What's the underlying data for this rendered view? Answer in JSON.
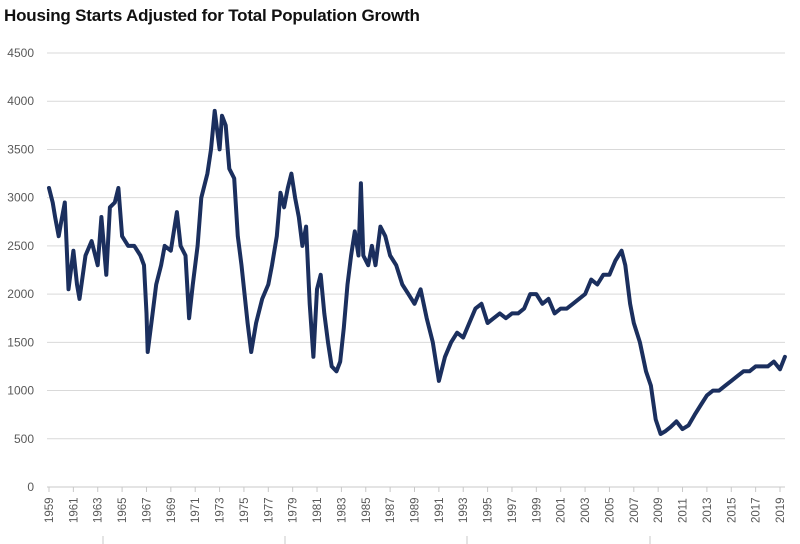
{
  "chart_data": {
    "type": "line",
    "title": "Housing Starts Adjusted for Total Population Growth",
    "xlabel": "",
    "ylabel": "",
    "ylim": [
      0,
      4500
    ],
    "xlim": [
      1959,
      2019.5
    ],
    "yticks": [
      0,
      500,
      1000,
      1500,
      2000,
      2500,
      3000,
      3500,
      4000,
      4500
    ],
    "xticks": [
      "1959",
      "1961",
      "1963",
      "1965",
      "1967",
      "1969",
      "1971",
      "1973",
      "1975",
      "1977",
      "1979",
      "1981",
      "1983",
      "1985",
      "1987",
      "1989",
      "1991",
      "1993",
      "1995",
      "1997",
      "1999",
      "2001",
      "2003",
      "2005",
      "2007",
      "2009",
      "2011",
      "2013",
      "2015",
      "2017",
      "2019"
    ],
    "grid": true,
    "legend": "none",
    "line_color": "#1b2f5e",
    "series": [
      {
        "name": "Housing Starts Adjusted for Total Population Growth",
        "x": [
          1959.0,
          1959.3,
          1959.5,
          1959.8,
          1960.0,
          1960.3,
          1960.6,
          1961.0,
          1961.3,
          1961.5,
          1962.0,
          1962.5,
          1963.0,
          1963.3,
          1963.7,
          1964.0,
          1964.4,
          1964.7,
          1965.0,
          1965.5,
          1966.0,
          1966.5,
          1966.8,
          1967.0,
          1967.1,
          1967.5,
          1967.8,
          1968.2,
          1968.5,
          1969.0,
          1969.5,
          1969.8,
          1970.2,
          1970.5,
          1970.8,
          1971.2,
          1971.5,
          1972.0,
          1972.3,
          1972.6,
          1973.0,
          1973.2,
          1973.5,
          1973.8,
          1974.2,
          1974.5,
          1974.8,
          1975.3,
          1975.6,
          1976.0,
          1976.5,
          1977.0,
          1977.3,
          1977.7,
          1978.0,
          1978.3,
          1978.6,
          1978.9,
          1979.2,
          1979.5,
          1979.8,
          1980.1,
          1980.4,
          1980.7,
          1981.0,
          1981.3,
          1981.6,
          1981.9,
          1982.2,
          1982.6,
          1982.9,
          1983.2,
          1983.5,
          1983.8,
          1984.1,
          1984.4,
          1984.6,
          1984.8,
          1985.2,
          1985.5,
          1985.8,
          1986.2,
          1986.6,
          1987.0,
          1987.5,
          1988.0,
          1988.5,
          1989.0,
          1989.5,
          1990.0,
          1990.5,
          1991.0,
          1991.5,
          1992.0,
          1992.5,
          1993.0,
          1993.5,
          1994.0,
          1994.5,
          1995.0,
          1995.5,
          1996.0,
          1996.5,
          1997.0,
          1997.5,
          1998.0,
          1998.5,
          1999.0,
          1999.5,
          2000.0,
          2000.5,
          2001.0,
          2001.5,
          2002.0,
          2002.5,
          2003.0,
          2003.5,
          2004.0,
          2004.5,
          2005.0,
          2005.5,
          2006.0,
          2006.3,
          2006.7,
          2007.0,
          2007.5,
          2008.0,
          2008.4,
          2008.8,
          2009.2,
          2009.6,
          2010.0,
          2010.5,
          2011.0,
          2011.5,
          2012.0,
          2012.5,
          2013.0,
          2013.5,
          2014.0,
          2014.5,
          2015.0,
          2015.5,
          2016.0,
          2016.5,
          2017.0,
          2017.5,
          2018.0,
          2018.5,
          2019.0,
          2019.4
        ],
        "values": [
          3100,
          2950,
          2800,
          2600,
          2750,
          2950,
          2050,
          2450,
          2100,
          1950,
          2400,
          2550,
          2300,
          2800,
          2200,
          2900,
          2950,
          3100,
          2600,
          2500,
          2500,
          2400,
          2300,
          1800,
          1400,
          1800,
          2100,
          2300,
          2500,
          2450,
          2850,
          2500,
          2400,
          1750,
          2100,
          2500,
          3000,
          3250,
          3500,
          3900,
          3500,
          3850,
          3750,
          3300,
          3200,
          2600,
          2300,
          1700,
          1400,
          1700,
          1950,
          2100,
          2300,
          2600,
          3050,
          2900,
          3100,
          3250,
          3000,
          2800,
          2500,
          2700,
          1900,
          1350,
          2050,
          2200,
          1800,
          1500,
          1250,
          1200,
          1300,
          1650,
          2100,
          2400,
          2650,
          2400,
          3150,
          2400,
          2300,
          2500,
          2300,
          2700,
          2600,
          2400,
          2300,
          2100,
          2000,
          1900,
          2050,
          1750,
          1500,
          1100,
          1350,
          1500,
          1600,
          1550,
          1700,
          1850,
          1900,
          1700,
          1750,
          1800,
          1750,
          1800,
          1800,
          1850,
          2000,
          2000,
          1900,
          1950,
          1800,
          1850,
          1850,
          1900,
          1950,
          2000,
          2150,
          2100,
          2200,
          2200,
          2350,
          2450,
          2300,
          1900,
          1700,
          1500,
          1200,
          1050,
          700,
          550,
          580,
          620,
          680,
          600,
          640,
          750,
          850,
          950,
          1000,
          1000,
          1050,
          1100,
          1150,
          1200,
          1200,
          1250,
          1250,
          1250,
          1300,
          1220,
          1350
        ]
      }
    ]
  }
}
